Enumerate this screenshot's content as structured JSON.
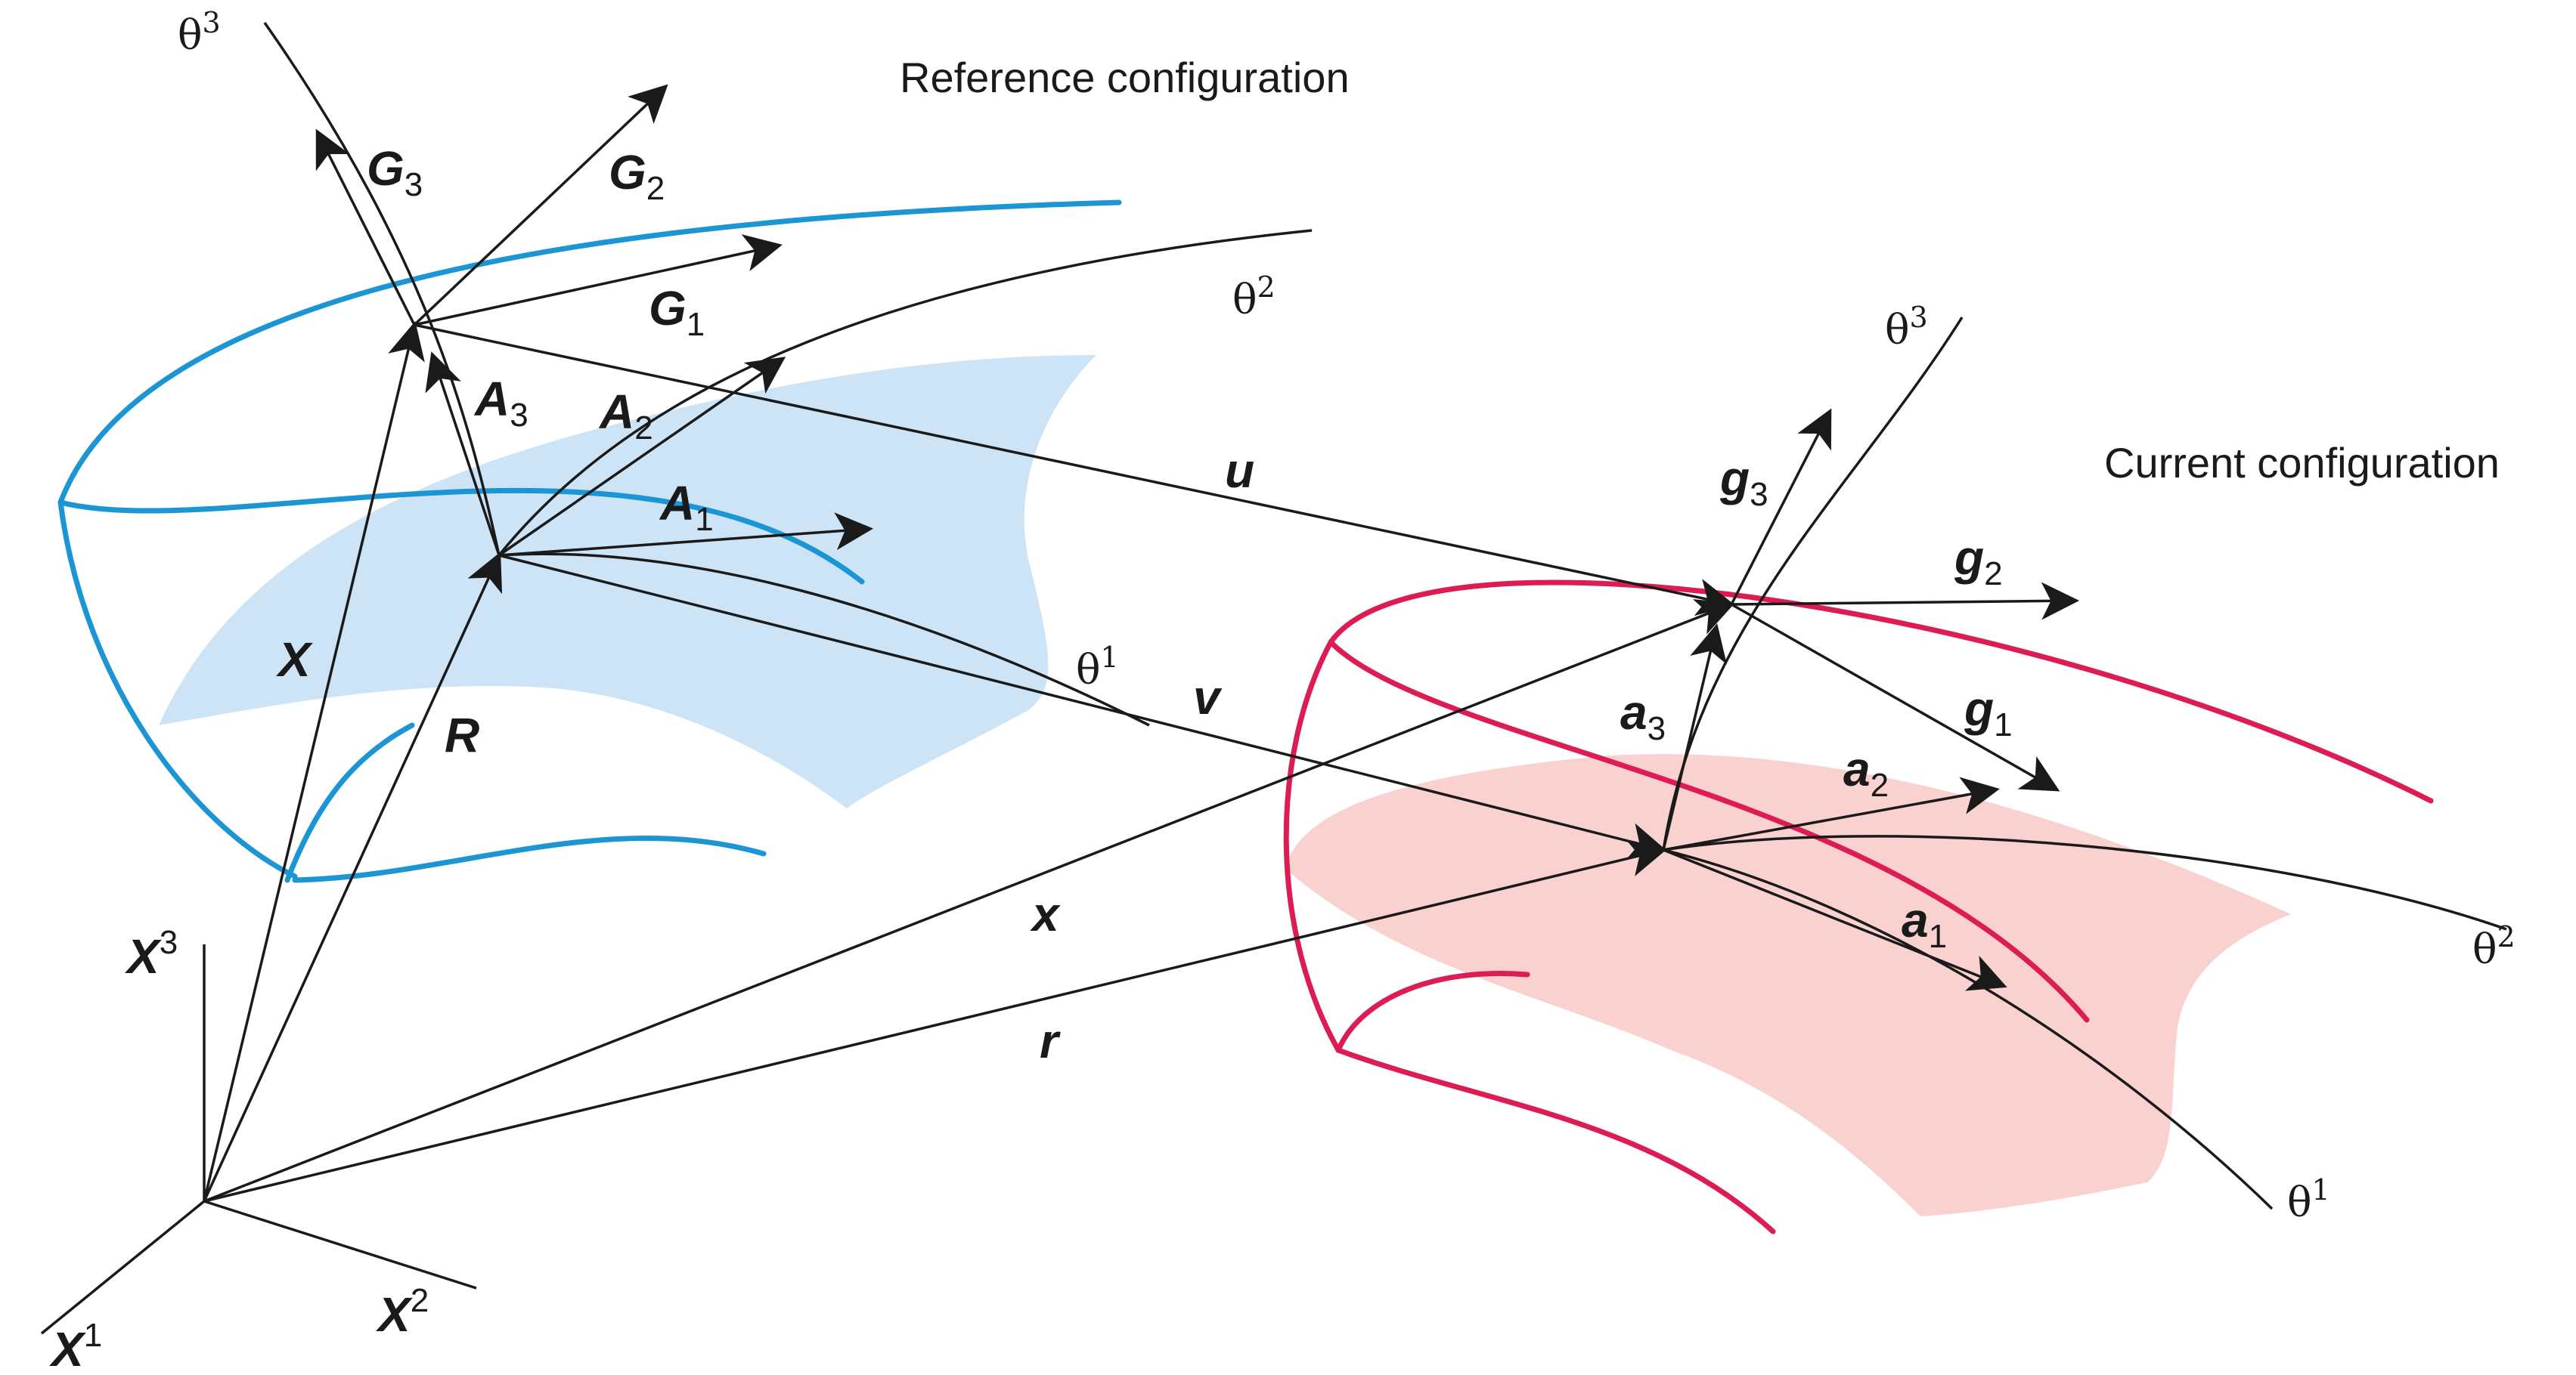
{
  "titles": {
    "reference": "Reference configuration",
    "current": "Current configuration"
  },
  "labels": {
    "G": {
      "base": "G",
      "i1": "1",
      "i2": "2",
      "i3": "3"
    },
    "A": {
      "base": "A",
      "i1": "1",
      "i2": "2",
      "i3": "3"
    },
    "g": {
      "base": "g",
      "i1": "1",
      "i2": "2",
      "i3": "3"
    },
    "a": {
      "base": "a",
      "i1": "1",
      "i2": "2",
      "i3": "3"
    },
    "X_axis": {
      "base": "X",
      "i1": "1",
      "i2": "2",
      "i3": "3"
    },
    "theta": {
      "base": "θ",
      "i1": "1",
      "i2": "2",
      "i3": "3"
    },
    "X": "X",
    "R": "R",
    "x": "x",
    "r": "r",
    "u": "u",
    "v": "v"
  },
  "colors": {
    "reference_curve": "#1b95d3",
    "reference_fill": "#cce4f5",
    "current_curve": "#dc1c53",
    "current_fill": "#f9d2cf",
    "ink": "#1a1a1a"
  }
}
